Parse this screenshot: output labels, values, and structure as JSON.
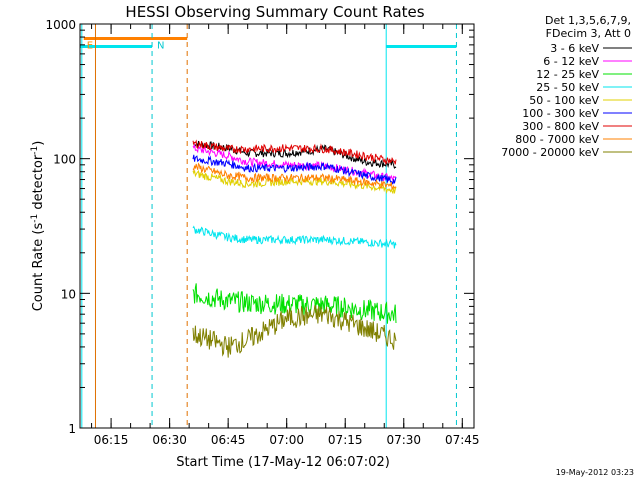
{
  "chart_data": {
    "type": "line",
    "title": "HESSI Observing Summary Count Rates",
    "xlabel": "Start Time (17-May-12 06:07:02)",
    "ylabel_main": "Count Rate (s",
    "ylabel_sup1": "-1",
    "ylabel_mid": " detector",
    "ylabel_sup2": "-1",
    "ylabel_end": ")",
    "y_scale": "log",
    "ylim": [
      1,
      1000
    ],
    "xlim_minutes": [
      "06:07:02",
      "07:48:00"
    ],
    "y_ticks": [
      "1",
      "10",
      "100",
      "1000"
    ],
    "x_ticks": [
      "06:15",
      "06:30",
      "06:45",
      "07:00",
      "07:15",
      "07:30",
      "07:45"
    ],
    "legend_header": [
      "Det 1,3,5,6,7,9,",
      "FDecim 3, Att 0"
    ],
    "date_stamp": "19-May-2012 03:23",
    "markers": [
      {
        "label": "E",
        "time": "06:08",
        "color": "#ff8c00"
      },
      {
        "label": "N",
        "time": "06:26",
        "color": "#00c8d0"
      }
    ],
    "vlines": [
      {
        "time": "06:07:30",
        "color": "#00e5ee",
        "style": "solid"
      },
      {
        "time": "06:11:00",
        "color": "#e07000",
        "style": "solid"
      },
      {
        "time": "06:25:30",
        "color": "#00c8d0",
        "style": "dashed"
      },
      {
        "time": "06:34:30",
        "color": "#e07000",
        "style": "dashed"
      },
      {
        "time": "07:25:30",
        "color": "#00e5ee",
        "style": "solid"
      },
      {
        "time": "07:43:30",
        "color": "#00c8d0",
        "style": "dashed"
      }
    ],
    "hbars": [
      {
        "name": "orange flag",
        "start": "06:08",
        "end": "06:34:30",
        "y": 780,
        "color": "#ff8000"
      },
      {
        "name": "cyan flag 1",
        "start": "06:07:02",
        "end": "06:25:30",
        "y": 680,
        "color": "#00e5ee"
      },
      {
        "name": "cyan flag 2",
        "start": "07:25:30",
        "end": "07:43:30",
        "y": 680,
        "color": "#00e5ee"
      }
    ],
    "series": [
      {
        "name": "3 - 6 keV",
        "color": "#000000",
        "x": [
          "06:36",
          "06:45",
          "06:50",
          "07:00",
          "07:10",
          "07:20",
          "07:28"
        ],
        "values": [
          130,
          120,
          110,
          110,
          118,
          95,
          90
        ]
      },
      {
        "name": "6 - 12 keV",
        "color": "#ff00ff",
        "x": [
          "06:36",
          "06:45",
          "06:50",
          "07:00",
          "07:10",
          "07:20",
          "07:28"
        ],
        "values": [
          120,
          105,
          95,
          90,
          88,
          78,
          70
        ]
      },
      {
        "name": "12 - 25 keV",
        "color": "#00e000",
        "x": [
          "06:36",
          "06:45",
          "06:50",
          "07:00",
          "07:10",
          "07:20",
          "07:28"
        ],
        "values": [
          10,
          8.8,
          8.5,
          8.3,
          8.2,
          7.5,
          7.0
        ]
      },
      {
        "name": "25 - 50 keV",
        "color": "#00e5ee",
        "x": [
          "06:36",
          "06:45",
          "06:50",
          "07:00",
          "07:10",
          "07:20",
          "07:28"
        ],
        "values": [
          30,
          26,
          25,
          25,
          25,
          24,
          23
        ]
      },
      {
        "name": "50 - 100 keV",
        "color": "#e0d000",
        "x": [
          "06:36",
          "06:45",
          "06:50",
          "07:00",
          "07:10",
          "07:20",
          "07:28"
        ],
        "values": [
          78,
          68,
          65,
          68,
          68,
          63,
          58
        ]
      },
      {
        "name": "100 - 300 keV",
        "color": "#0000ff",
        "x": [
          "06:36",
          "06:45",
          "06:50",
          "07:00",
          "07:10",
          "07:20",
          "07:28"
        ],
        "values": [
          100,
          92,
          85,
          85,
          88,
          75,
          68
        ]
      },
      {
        "name": "300 - 800 keV",
        "color": "#e00000",
        "x": [
          "06:36",
          "06:45",
          "06:50",
          "07:00",
          "07:10",
          "07:20",
          "07:28"
        ],
        "values": [
          130,
          118,
          118,
          120,
          118,
          105,
          95
        ]
      },
      {
        "name": "800 - 7000 keV",
        "color": "#ff8000",
        "x": [
          "06:36",
          "06:45",
          "06:50",
          "07:00",
          "07:10",
          "07:20",
          "07:28"
        ],
        "values": [
          88,
          75,
          72,
          72,
          72,
          67,
          62
        ]
      },
      {
        "name": "7000 - 20000 keV",
        "color": "#808000",
        "x": [
          "06:36",
          "06:45",
          "06:50",
          "07:00",
          "07:10",
          "07:20",
          "07:28"
        ],
        "values": [
          5.0,
          4.0,
          4.5,
          6.5,
          7.0,
          5.5,
          4.5
        ]
      }
    ]
  }
}
